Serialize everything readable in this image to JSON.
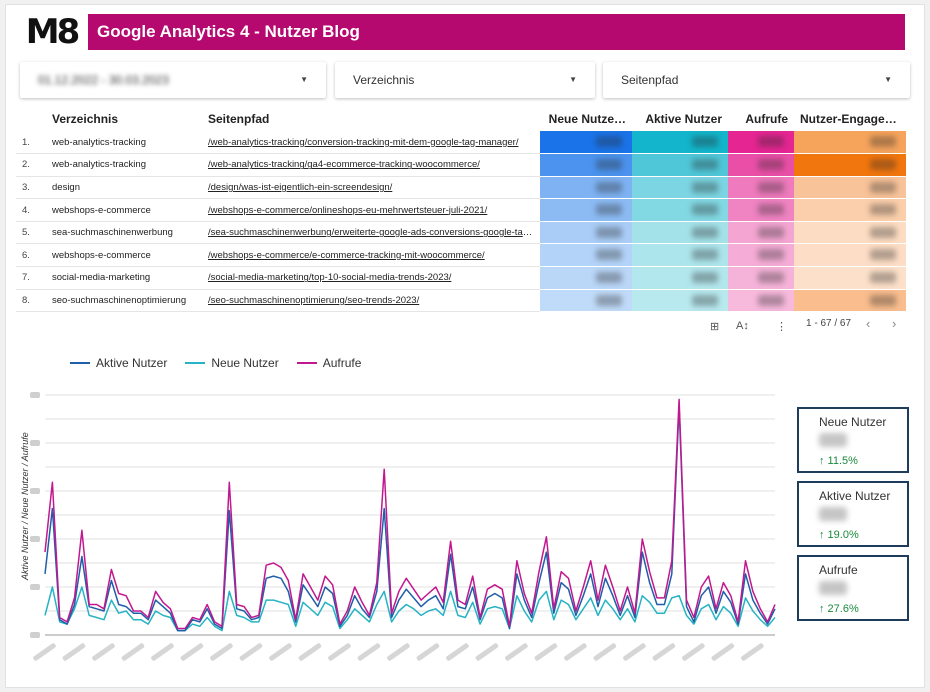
{
  "header": {
    "logo_text": "M8",
    "title": "Google Analytics 4 - Nutzer Blog",
    "color": "#b5096f"
  },
  "filters": {
    "date_range": "01.12.2022 - 30.03.2023",
    "directory_label": "Verzeichnis",
    "path_label": "Seitenpfad",
    "caret_icon": "caret-down-icon"
  },
  "table": {
    "headers": [
      "Verzeichnis",
      "Seitenpfad",
      "Neue Nutze…",
      "Aktive Nutzer",
      "Aufrufe",
      "Nutzer-Engagem…"
    ],
    "rows": [
      {
        "idx": "1.",
        "dir": "web-analytics-tracking",
        "path": "/web-analytics-tracking/conversion-tracking-mit-dem-google-tag-manager/"
      },
      {
        "idx": "2.",
        "dir": "web-analytics-tracking",
        "path": "/web-analytics-tracking/ga4-ecommerce-tracking-woocommerce/"
      },
      {
        "idx": "3.",
        "dir": "design",
        "path": "/design/was-ist-eigentlich-ein-screendesign/"
      },
      {
        "idx": "4.",
        "dir": "webshops-e-commerce",
        "path": "/webshops-e-commerce/onlineshops-eu-mehrwertsteuer-juli-2021/"
      },
      {
        "idx": "5.",
        "dir": "sea-suchmaschinenwerbung",
        "path": "/sea-suchmaschinenwerbung/erweiterte-google-ads-conversions-google-tag-…"
      },
      {
        "idx": "6.",
        "dir": "webshops-e-commerce",
        "path": "/webshops-e-commerce/e-commerce-tracking-mit-woocommerce/"
      },
      {
        "idx": "7.",
        "dir": "social-media-marketing",
        "path": "/social-media-marketing/top-10-social-media-trends-2023/"
      },
      {
        "idx": "8.",
        "dir": "seo-suchmaschinenoptimierung",
        "path": "/seo-suchmaschinenoptimierung/seo-trends-2023/"
      }
    ],
    "heatmap_colors": {
      "neue_nutzer": [
        "#1a73e8",
        "#4b93ee",
        "#7eb2f3",
        "#8cbbf4",
        "#a9cdf7",
        "#b3d3f8",
        "#bad7f8",
        "#c0dbf9"
      ],
      "aktive_nutzer": [
        "#12b5cb",
        "#4fc7d8",
        "#7bd5e2",
        "#82d8e3",
        "#a4e2ea",
        "#acE5ec",
        "#b3e7ee",
        "#b8e9ef"
      ],
      "aufrufe": [
        "#e52592",
        "#ea4fa7",
        "#ef7abd",
        "#f083c2",
        "#f4a5d2",
        "#f5acd6",
        "#f6b3d9",
        "#f7b9dc"
      ],
      "nutzer_engagement": [
        "#f6a45c",
        "#f2760e",
        "#f9c399",
        "#fbcfab",
        "#fcdcc2",
        "#fdddc5",
        "#fce0c9",
        "#f9bd8e"
      ]
    },
    "pagination": "1 - 67 / 67",
    "icons": [
      "chart-settings-icon",
      "sort-az-icon",
      "more-vert-icon",
      "chevron-left-icon",
      "chevron-right-icon"
    ]
  },
  "legend": [
    {
      "label": "Aktive Nutzer",
      "color": "#1f5ea8"
    },
    {
      "label": "Neue Nutzer",
      "color": "#26b3c4"
    },
    {
      "label": "Aufrufe",
      "color": "#c2188f"
    }
  ],
  "chart_data": {
    "type": "line",
    "ylabel": "Aktive Nutzer / Neue Nutzer / Aufrufe",
    "ylim": [
      0,
      100
    ],
    "grid": true,
    "legend_position": "top-left",
    "series": [
      {
        "name": "Aktive Nutzer",
        "values": [
          28,
          58,
          7,
          5,
          14,
          36,
          13,
          12,
          11,
          25,
          14,
          13,
          10,
          10,
          7,
          16,
          13,
          10,
          2,
          2,
          7,
          6,
          12,
          5,
          3,
          57,
          12,
          11,
          7,
          8,
          26,
          27,
          26,
          20,
          6,
          23,
          18,
          13,
          22,
          19,
          4,
          9,
          18,
          12,
          8,
          20,
          58,
          8,
          16,
          21,
          17,
          13,
          16,
          18,
          12,
          37,
          13,
          12,
          22,
          7,
          17,
          19,
          17,
          3,
          28,
          16,
          8,
          24,
          38,
          10,
          24,
          21,
          9,
          18,
          28,
          13,
          26,
          18,
          9,
          18,
          8,
          38,
          24,
          14,
          14,
          28,
          105,
          13,
          6,
          18,
          22,
          10,
          20,
          15,
          5,
          28,
          16,
          10,
          5,
          12
        ]
      },
      {
        "name": "Neue Nutzer",
        "values": [
          9,
          22,
          6,
          5,
          12,
          22,
          9,
          8,
          7,
          16,
          10,
          11,
          7,
          7,
          5,
          11,
          9,
          8,
          2,
          2,
          5,
          4,
          8,
          4,
          2,
          20,
          9,
          8,
          6,
          6,
          16,
          16,
          15,
          14,
          4,
          15,
          12,
          9,
          15,
          13,
          3,
          7,
          12,
          9,
          6,
          14,
          20,
          6,
          11,
          14,
          12,
          9,
          11,
          12,
          9,
          20,
          9,
          8,
          15,
          5,
          12,
          13,
          12,
          3,
          18,
          11,
          6,
          16,
          20,
          7,
          16,
          14,
          7,
          12,
          17,
          9,
          16,
          12,
          7,
          12,
          6,
          18,
          15,
          10,
          10,
          17,
          18,
          9,
          5,
          12,
          14,
          7,
          13,
          10,
          4,
          17,
          11,
          7,
          4,
          8
        ]
      },
      {
        "name": "Aufrufe",
        "values": [
          38,
          70,
          8,
          6,
          17,
          48,
          14,
          14,
          12,
          30,
          19,
          18,
          11,
          11,
          8,
          20,
          15,
          12,
          3,
          3,
          8,
          7,
          14,
          6,
          4,
          70,
          14,
          13,
          8,
          9,
          32,
          33,
          31,
          25,
          7,
          28,
          22,
          16,
          27,
          23,
          5,
          11,
          22,
          15,
          9,
          24,
          76,
          10,
          20,
          26,
          21,
          16,
          19,
          22,
          15,
          43,
          16,
          14,
          27,
          8,
          21,
          23,
          21,
          4,
          34,
          19,
          10,
          29,
          45,
          12,
          29,
          26,
          11,
          22,
          34,
          16,
          32,
          22,
          11,
          22,
          10,
          44,
          29,
          17,
          17,
          34,
          108,
          16,
          8,
          22,
          27,
          12,
          24,
          18,
          6,
          34,
          20,
          12,
          6,
          14
        ]
      }
    ]
  },
  "kpis": [
    {
      "label": "Neue Nutzer",
      "delta": "↑ 11.5%"
    },
    {
      "label": "Aktive Nutzer",
      "delta": "↑ 19.0%"
    },
    {
      "label": "Aufrufe",
      "delta": "↑ 27.6%"
    }
  ]
}
